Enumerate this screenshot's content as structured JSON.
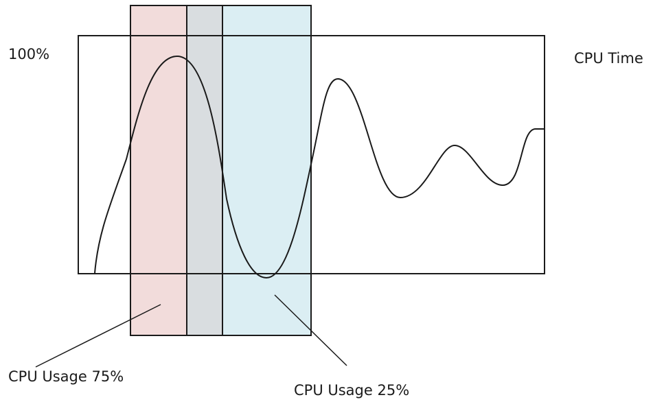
{
  "labels": {
    "y_max": "100%",
    "cpu_time": "CPU Time",
    "usage_high": "CPU Usage 75%",
    "usage_low": "CPU Usage 25%"
  },
  "colors": {
    "high_usage_band": "#f2dcdb",
    "overlap_band": "#d9dde0",
    "low_usage_band": "#dbeef3",
    "stroke": "#1a1a1a"
  }
}
